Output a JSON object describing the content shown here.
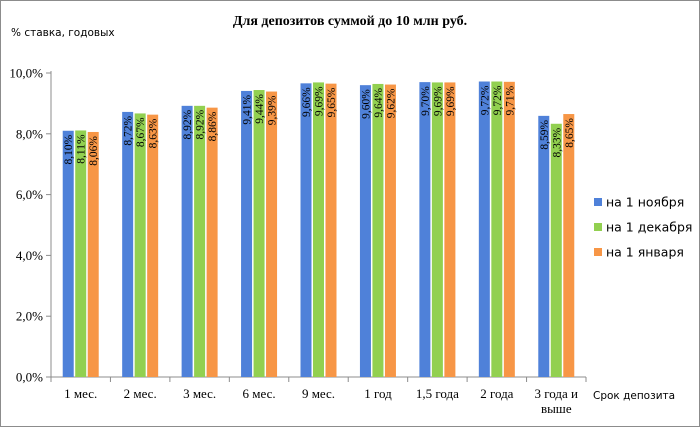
{
  "chart_data": {
    "type": "bar",
    "title": "Для депозитов суммой до 10 млн руб.",
    "ylabel": "% ставка, годовых",
    "xlabel": "Срок депозита",
    "ylim": [
      0,
      10
    ],
    "ytick_values": [
      0,
      2,
      4,
      6,
      8,
      10
    ],
    "ytick_labels": [
      "0,0%",
      "2,0%",
      "4,0%",
      "6,0%",
      "8,0%",
      "10,0%"
    ],
    "grid": false,
    "legend_position": "right",
    "categories": [
      [
        "1 мес."
      ],
      [
        "2 мес."
      ],
      [
        "3 мес."
      ],
      [
        "6 мес."
      ],
      [
        "9 мес."
      ],
      [
        "1 год"
      ],
      [
        "1,5 года"
      ],
      [
        "2 года"
      ],
      [
        "3 года и",
        "выше"
      ]
    ],
    "series": [
      {
        "name": "на 1 ноября",
        "color": "#4f81d9",
        "values": [
          8.1,
          8.72,
          8.92,
          9.41,
          9.66,
          9.6,
          9.7,
          9.72,
          8.59
        ],
        "labels": [
          "8,10%",
          "8,72%",
          "8,92%",
          "9,41%",
          "9,66%",
          "9,60%",
          "9,70%",
          "9,72%",
          "8,59%"
        ]
      },
      {
        "name": "на 1 декабря",
        "color": "#92d050",
        "values": [
          8.11,
          8.67,
          8.92,
          9.44,
          9.69,
          9.64,
          9.69,
          9.72,
          8.33
        ],
        "labels": [
          "8,11%",
          "8,67%",
          "8,92%",
          "9,44%",
          "9,69%",
          "9,64%",
          "9,69%",
          "9,72%",
          "8,33%"
        ]
      },
      {
        "name": "на 1 января",
        "color": "#f79646",
        "values": [
          8.06,
          8.63,
          8.86,
          9.39,
          9.65,
          9.62,
          9.69,
          9.71,
          8.65
        ],
        "labels": [
          "8,06%",
          "8,63%",
          "8,86%",
          "9,39%",
          "9,65%",
          "9,62%",
          "9,69%",
          "9,71%",
          "8,65%"
        ]
      }
    ]
  }
}
